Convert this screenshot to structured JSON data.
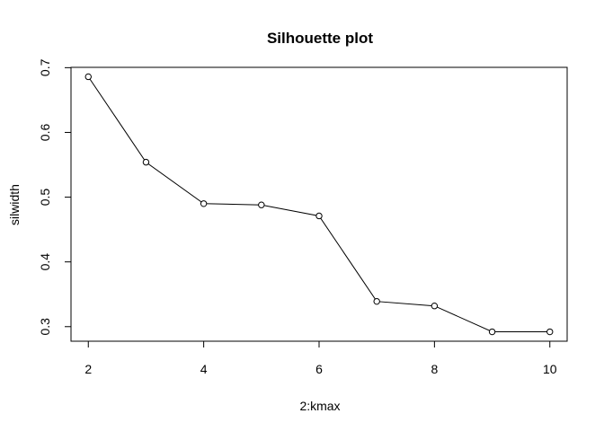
{
  "chart_data": {
    "type": "line",
    "title": "Silhouette plot",
    "xlabel": "2:kmax",
    "ylabel": "silwidth",
    "x": [
      2,
      3,
      4,
      5,
      6,
      7,
      8,
      9,
      10
    ],
    "y": [
      0.686,
      0.554,
      0.49,
      0.488,
      0.471,
      0.339,
      0.332,
      0.292,
      0.292
    ],
    "xlim": [
      1.7,
      10.3
    ],
    "ylim": [
      0.2775,
      0.7005
    ],
    "xticks": [
      2,
      4,
      6,
      8,
      10
    ],
    "yticks": [
      0.3,
      0.4,
      0.5,
      0.6,
      0.7
    ],
    "marker": "open-circle",
    "grid": false,
    "legend": "none",
    "line_color": "#000000"
  }
}
